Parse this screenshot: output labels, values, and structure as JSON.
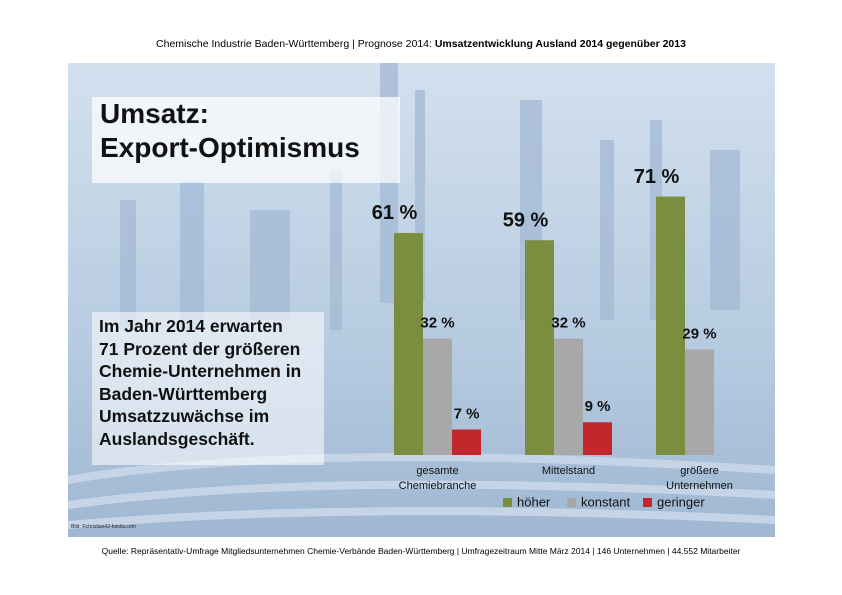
{
  "header": {
    "text": "Chemische Industrie Baden-Württemberg | Prognose 2014: ",
    "bold": "Umsatzentwicklung Ausland 2014 gegenüber 2013"
  },
  "headline": [
    "Umsatz:",
    "Export-Optimismus"
  ],
  "body_lines": [
    "Im Jahr 2014 erwarten",
    "71 Prozent der größeren",
    "Chemie-Unternehmen in",
    "Baden-Württemberg",
    "Umsatzzuwächse im",
    "Auslandsgeschäft."
  ],
  "credit": "Bild: ©christian42-fotolia.com",
  "source": "Quelle: Repräsentativ-Umfrage Mitgliedsunternehmen Chemie-Verbände Baden-Württemberg | Umfragezeitraum Mitte März 2014 | 146 Unternehmen | 44.552 Mitarbeiter",
  "chart_data": {
    "type": "bar",
    "categories": [
      "gesamte Chemiebranche",
      "Mittelstand",
      "größere Unternehmen"
    ],
    "series": [
      {
        "name": "höher",
        "color": "#7b8d3f",
        "values": [
          61,
          59,
          71
        ],
        "value_labels": [
          "61 %",
          "59 %",
          "71 %"
        ]
      },
      {
        "name": "konstant",
        "color": "#a8a8a8",
        "values": [
          32,
          32,
          29
        ],
        "value_labels": [
          "32 %",
          "32 %",
          "29 %"
        ]
      },
      {
        "name": "geringer",
        "color": "#c1272d",
        "values": [
          7,
          9,
          0
        ],
        "value_labels": [
          "7 %",
          "9 %",
          null
        ]
      }
    ],
    "ylim": [
      0,
      100
    ],
    "legend": "bottom"
  }
}
